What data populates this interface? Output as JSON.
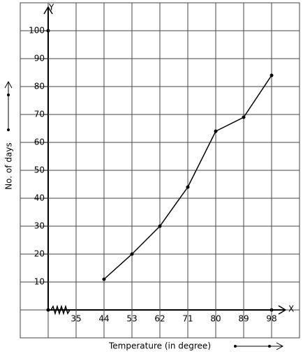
{
  "chart_data": {
    "type": "line",
    "x_label": "Temperature (in degree)",
    "y_label": "No. of days",
    "x_axis_name": "X",
    "y_axis_name": "Y",
    "categories": [
      "35",
      "44",
      "53",
      "62",
      "71",
      "80",
      "89",
      "98"
    ],
    "values": [
      null,
      11,
      20,
      30,
      44,
      64,
      69,
      84
    ],
    "color": "#000000",
    "ylim": [
      -10,
      110
    ],
    "yticks": [
      10,
      20,
      30,
      40,
      50,
      60,
      70,
      80,
      90,
      100
    ],
    "grid": true
  }
}
